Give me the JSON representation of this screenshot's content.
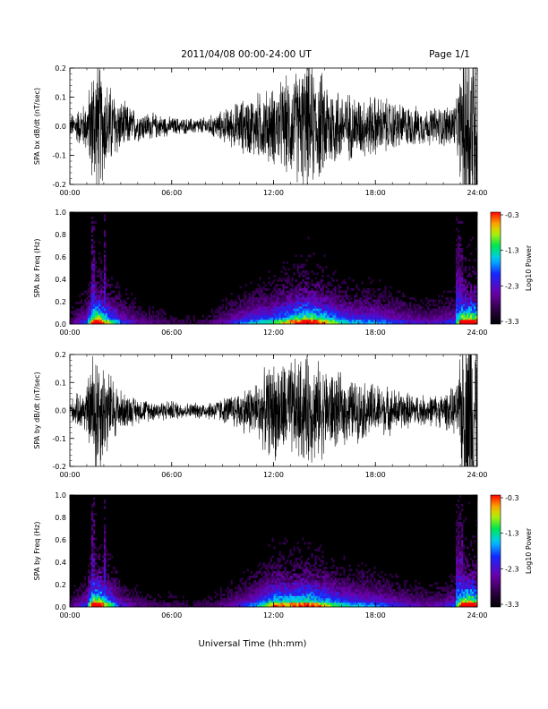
{
  "header": {
    "title": "2011/04/08   00:00-24:00 UT",
    "page": "Page 1/1"
  },
  "xlabel": "Universal Time (hh:mm)",
  "colorbar": {
    "label": "Log10 Power",
    "ticks": [
      "-0.3",
      "-1.3",
      "-2.3",
      "-3.3"
    ],
    "range": [
      -3.3,
      -0.3
    ],
    "colormap": "rainbow (black-purple-blue-cyan-green-yellow-red)"
  },
  "chart_data": [
    {
      "type": "line",
      "ylabel": "SPA bx dB/dt (nT/sec)",
      "xlim": [
        0,
        24
      ],
      "ylim": [
        -0.2,
        0.2
      ],
      "xticks": [
        "00:00",
        "06:00",
        "12:00",
        "18:00",
        "24:00"
      ],
      "yticks": [
        "0.2",
        "0.1",
        "0.0",
        "-0.1",
        "-0.2"
      ],
      "x_hours": [
        0,
        1,
        1.5,
        2,
        3,
        4,
        5,
        6,
        7,
        8,
        9,
        10,
        11,
        12,
        13,
        14,
        15,
        16,
        17,
        18,
        19,
        20,
        21,
        22,
        22.8,
        23.3,
        24
      ],
      "amplitude_nT_per_sec": [
        0.04,
        0.1,
        0.3,
        0.2,
        0.1,
        0.06,
        0.05,
        0.035,
        0.03,
        0.035,
        0.06,
        0.1,
        0.13,
        0.15,
        0.2,
        0.25,
        0.2,
        0.14,
        0.12,
        0.12,
        0.1,
        0.08,
        0.07,
        0.08,
        0.1,
        0.4,
        0.4
      ]
    },
    {
      "type": "heatmap",
      "ylabel": "SPA bx Freq (Hz)",
      "xlim": [
        0,
        24
      ],
      "ylim": [
        0,
        1.0
      ],
      "xticks": [
        "00:00",
        "06:00",
        "12:00",
        "18:00",
        "24:00"
      ],
      "yticks": [
        "1.0",
        "0.8",
        "0.6",
        "0.4",
        "0.2",
        "0.0"
      ],
      "value_label": "Log10 Power"
    },
    {
      "type": "line",
      "ylabel": "SPA by dB/dt (nT/sec)",
      "xlim": [
        0,
        24
      ],
      "ylim": [
        -0.2,
        0.2
      ],
      "xticks": [
        "00:00",
        "06:00",
        "12:00",
        "18:00",
        "24:00"
      ],
      "yticks": [
        "0.2",
        "0.1",
        "0.0",
        "-0.1",
        "-0.2"
      ],
      "x_hours": [
        0,
        1,
        1.5,
        2,
        3,
        4,
        5,
        6,
        7,
        8,
        9,
        10,
        11,
        12,
        13,
        14,
        15,
        16,
        17,
        18,
        19,
        20,
        21,
        22,
        22.8,
        23.3,
        24
      ],
      "amplitude_nT_per_sec": [
        0.04,
        0.1,
        0.3,
        0.2,
        0.08,
        0.05,
        0.04,
        0.04,
        0.03,
        0.035,
        0.05,
        0.08,
        0.12,
        0.2,
        0.2,
        0.22,
        0.18,
        0.14,
        0.12,
        0.11,
        0.09,
        0.07,
        0.06,
        0.07,
        0.1,
        0.4,
        0.4
      ]
    },
    {
      "type": "heatmap",
      "ylabel": "SPA by Freq (Hz)",
      "xlim": [
        0,
        24
      ],
      "ylim": [
        0,
        1.0
      ],
      "xticks": [
        "00:00",
        "06:00",
        "12:00",
        "18:00",
        "24:00"
      ],
      "yticks": [
        "1.0",
        "0.8",
        "0.6",
        "0.4",
        "0.2",
        "0.0"
      ],
      "value_label": "Log10 Power"
    }
  ]
}
